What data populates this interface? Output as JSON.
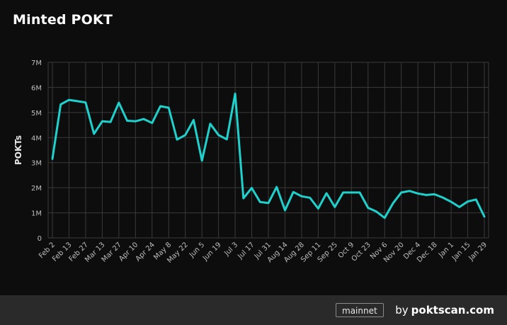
{
  "title": "Minted POKT",
  "footer": {
    "network_badge": "mainnet",
    "by_prefix": "by",
    "brand": "poktscan.com"
  },
  "colors": {
    "background": "#0d0d0d",
    "line": "#1fd1cc",
    "grid": "#3a3a3a",
    "footer": "#2a2a2a"
  },
  "chart_data": {
    "type": "line",
    "title": "Minted POKT",
    "xlabel": "",
    "ylabel": "POKTs",
    "ylim": [
      0,
      7000000
    ],
    "yticks": [
      {
        "value": 0,
        "label": "0"
      },
      {
        "value": 1000000,
        "label": "1M"
      },
      {
        "value": 2000000,
        "label": "2M"
      },
      {
        "value": 3000000,
        "label": "3M"
      },
      {
        "value": 4000000,
        "label": "4M"
      },
      {
        "value": 5000000,
        "label": "5M"
      },
      {
        "value": 6000000,
        "label": "6M"
      },
      {
        "value": 7000000,
        "label": "7M"
      }
    ],
    "xticks": [
      {
        "index": 0,
        "label": "Feb 2"
      },
      {
        "index": 2,
        "label": "Feb 13"
      },
      {
        "index": 4,
        "label": "Feb 27"
      },
      {
        "index": 6,
        "label": "Mar 13"
      },
      {
        "index": 8,
        "label": "Mar 27"
      },
      {
        "index": 10,
        "label": "Apr 10"
      },
      {
        "index": 12,
        "label": "Apr 24"
      },
      {
        "index": 14,
        "label": "May 8"
      },
      {
        "index": 16,
        "label": "May 22"
      },
      {
        "index": 18,
        "label": "Jun 5"
      },
      {
        "index": 20,
        "label": "Jun 19"
      },
      {
        "index": 22,
        "label": "Jul 3"
      },
      {
        "index": 24,
        "label": "Jul 17"
      },
      {
        "index": 26,
        "label": "Jul 31"
      },
      {
        "index": 28,
        "label": "Aug 14"
      },
      {
        "index": 30,
        "label": "Aug 28"
      },
      {
        "index": 32,
        "label": "Sep 11"
      },
      {
        "index": 34,
        "label": "Sep 25"
      },
      {
        "index": 36,
        "label": "Oct 9"
      },
      {
        "index": 38,
        "label": "Oct 23"
      },
      {
        "index": 40,
        "label": "Nov 6"
      },
      {
        "index": 42,
        "label": "Nov 20"
      },
      {
        "index": 44,
        "label": "Dec 4"
      },
      {
        "index": 46,
        "label": "Dec 18"
      },
      {
        "index": 48,
        "label": "Jan 1"
      },
      {
        "index": 50,
        "label": "Jan 15"
      },
      {
        "index": 52,
        "label": "Jan 29"
      }
    ],
    "grid": true,
    "series": [
      {
        "values": [
          3150000,
          5320000,
          5500000,
          5450000,
          5400000,
          4150000,
          4650000,
          4620000,
          5390000,
          4670000,
          4650000,
          4740000,
          4580000,
          5250000,
          5190000,
          3920000,
          4100000,
          4700000,
          3080000,
          4550000,
          4100000,
          3930000,
          5750000,
          1580000,
          1990000,
          1430000,
          1390000,
          2030000,
          1100000,
          1830000,
          1660000,
          1600000,
          1170000,
          1780000,
          1230000,
          1810000,
          1810000,
          1810000,
          1200000,
          1050000,
          800000,
          1380000,
          1810000,
          1870000,
          1770000,
          1710000,
          1740000,
          1610000,
          1440000,
          1230000,
          1450000,
          1530000,
          850000
        ]
      }
    ]
  }
}
